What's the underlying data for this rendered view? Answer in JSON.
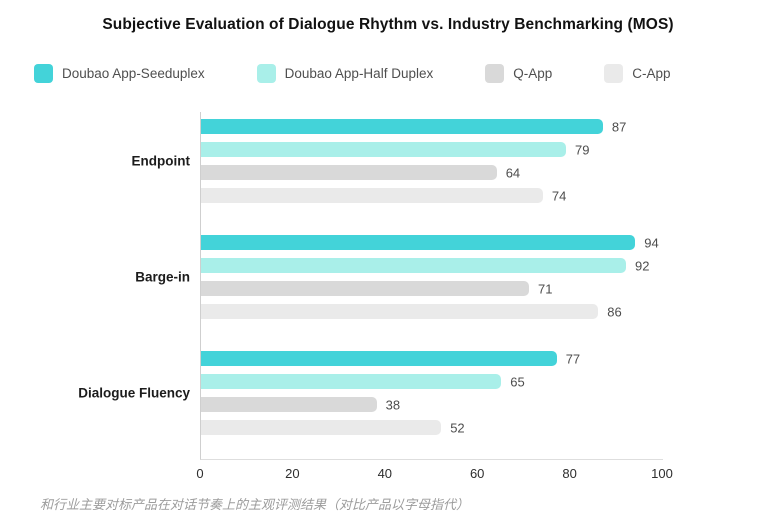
{
  "title": "Subjective Evaluation of Dialogue Rhythm vs. Industry Benchmarking (MOS)",
  "caption": "和行业主要对标产品在对话节奏上的主观评测结果（对比产品以字母指代）",
  "chart_data": {
    "type": "bar",
    "orientation": "horizontal",
    "title": "Subjective Evaluation of Dialogue Rhythm vs. Industry Benchmarking (MOS)",
    "categories": [
      "Endpoint",
      "Barge-in",
      "Dialogue Fluency"
    ],
    "series": [
      {
        "name": "Doubao App-Seeduplex",
        "color": "#43d3d9",
        "values": [
          87,
          94,
          77
        ]
      },
      {
        "name": "Doubao App-Half Duplex",
        "color": "#a9efe9",
        "values": [
          79,
          92,
          65
        ]
      },
      {
        "name": "Q-App",
        "color": "#d9d9d9",
        "values": [
          64,
          71,
          38
        ]
      },
      {
        "name": "C-App",
        "color": "#eaeaea",
        "values": [
          74,
          86,
          52
        ]
      }
    ],
    "xlim": [
      0,
      100
    ],
    "x_ticks": [
      0,
      20,
      40,
      60,
      80,
      100
    ],
    "value_labels": true,
    "legend_position": "top",
    "grid": false
  },
  "colors": {
    "background": "#ffffff",
    "axis_line": "#d8d8d8",
    "value_label": "#4d4d4d",
    "category_label": "#1c1c1c",
    "tick_label": "#2e2e2e",
    "caption": "#9c9c9c"
  }
}
